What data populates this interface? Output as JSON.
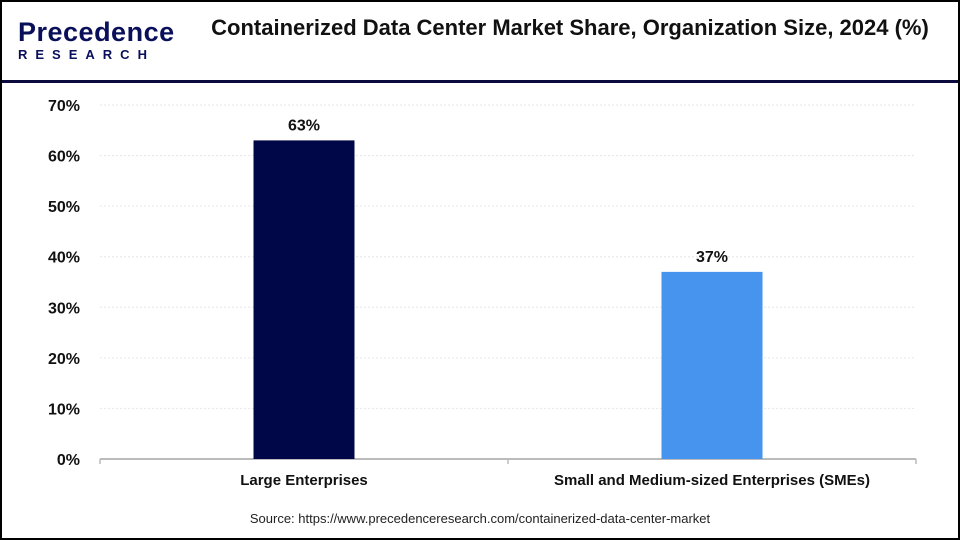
{
  "logo": {
    "line1": "Precedence",
    "line2": "RESEARCH"
  },
  "chart_data": {
    "type": "bar",
    "title": "Containerized Data Center Market Share, Organization Size, 2024 (%)",
    "categories": [
      "Large Enterprises",
      "Small and Medium-sized Enterprises (SMEs)"
    ],
    "values": [
      63,
      37
    ],
    "data_labels": [
      "63%",
      "37%"
    ],
    "colors": [
      "#000748",
      "#4694ee"
    ],
    "ylim": [
      0,
      70
    ],
    "yticks": [
      "0%",
      "10%",
      "20%",
      "30%",
      "40%",
      "50%",
      "60%",
      "70%"
    ],
    "grid": true,
    "xlabel": "",
    "ylabel": ""
  },
  "source": "Source: https://www.precedenceresearch.com/containerized-data-center-market"
}
